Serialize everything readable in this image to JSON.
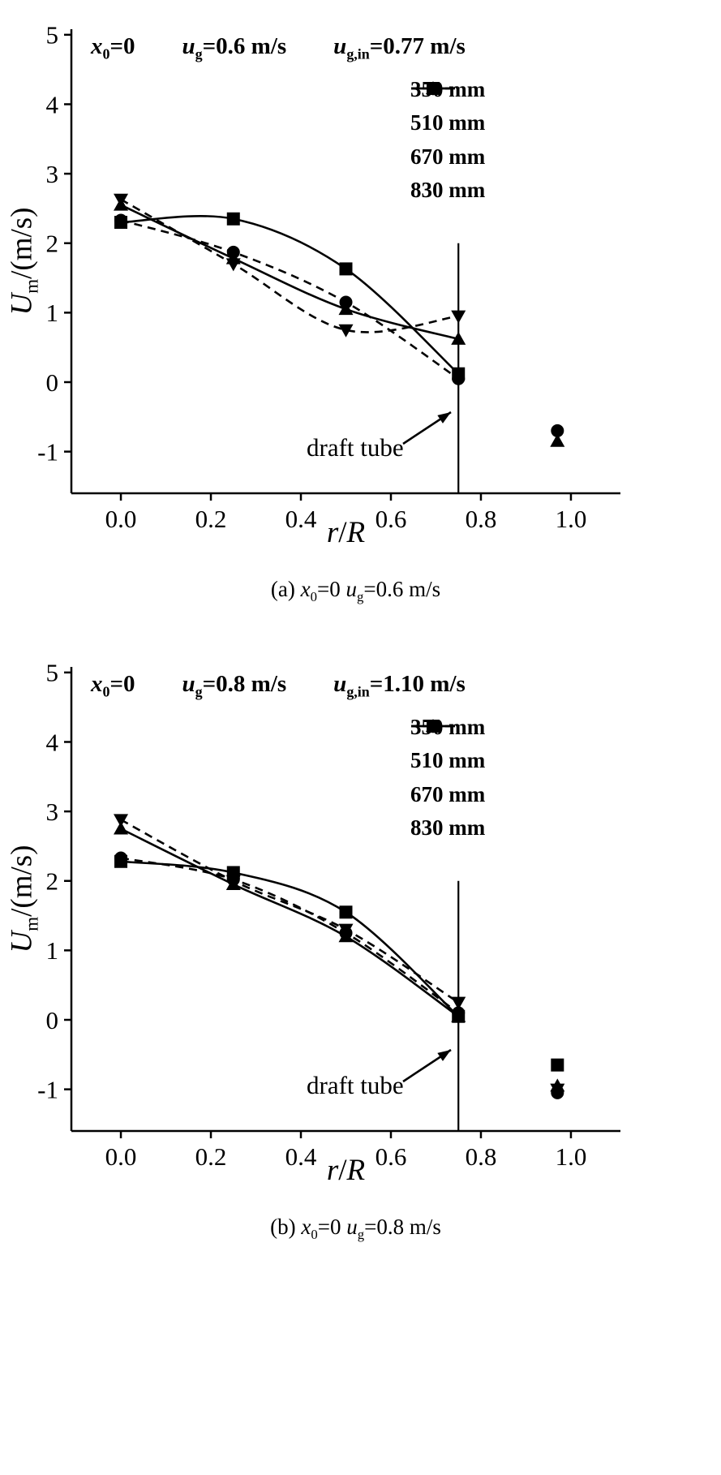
{
  "page": {
    "background": "#ffffff",
    "ink": "#000000"
  },
  "chart_data": [
    {
      "id": "a",
      "type": "scatter",
      "caption": [
        {
          "t": "(a) "
        },
        {
          "t": "x",
          "s": "i"
        },
        {
          "t": "0",
          "s": "sub"
        },
        {
          "t": "=0 "
        },
        {
          "t": "u",
          "s": "i"
        },
        {
          "t": "g",
          "s": "sub"
        },
        {
          "t": "=0.6 m/s"
        }
      ],
      "title_annotation": [
        [
          {
            "t": "x",
            "s": "i"
          },
          {
            "t": "0",
            "s": "sub"
          },
          {
            "t": "=0"
          }
        ],
        [
          {
            "t": "u",
            "s": "i"
          },
          {
            "t": "g",
            "s": "sub"
          },
          {
            "t": "=0.6 m/s"
          }
        ],
        [
          {
            "t": "u",
            "s": "i"
          },
          {
            "t": "g,in",
            "s": "sub"
          },
          {
            "t": "=0.77 m/s"
          }
        ]
      ],
      "xlabel": [
        {
          "t": "r",
          "s": "i"
        },
        {
          "t": "/"
        },
        {
          "t": "R",
          "s": "i"
        }
      ],
      "ylabel": [
        {
          "t": "U",
          "s": "i"
        },
        {
          "t": "m",
          "s": "sub"
        },
        {
          "t": "/(m/s)"
        }
      ],
      "xlim": [
        -0.11,
        1.11
      ],
      "ylim": [
        -1.6,
        5.08
      ],
      "xticks": [
        {
          "v": 0,
          "label": "0.0"
        },
        {
          "v": 0.2,
          "label": "0.2"
        },
        {
          "v": 0.4,
          "label": "0.4"
        },
        {
          "v": 0.6,
          "label": "0.6"
        },
        {
          "v": 0.8,
          "label": "0.8"
        },
        {
          "v": 1,
          "label": "1.0"
        }
      ],
      "yticks": [
        {
          "v": 5,
          "label": "5"
        },
        {
          "v": 4,
          "label": "4"
        },
        {
          "v": 3,
          "label": "3"
        },
        {
          "v": 2,
          "label": "2"
        },
        {
          "v": 1,
          "label": "1"
        },
        {
          "v": 0,
          "label": "0"
        },
        {
          "v": -1,
          "label": "-1"
        }
      ],
      "legend_position": "top-right",
      "series": [
        {
          "name": "350 mm",
          "marker": "square",
          "line": "solid",
          "points": [
            [
              0,
              2.3
            ],
            [
              0.25,
              2.35
            ],
            [
              0.5,
              1.63
            ],
            [
              0.75,
              0.12
            ]
          ],
          "outliers": []
        },
        {
          "name": "510 mm",
          "marker": "circle",
          "line": "dashed",
          "points": [
            [
              0,
              2.33
            ],
            [
              0.25,
              1.87
            ],
            [
              0.5,
              1.15
            ],
            [
              0.75,
              0.05
            ]
          ],
          "outliers": [
            [
              0.97,
              -0.7
            ]
          ]
        },
        {
          "name": "670 mm",
          "marker": "triangle-up",
          "line": "solid",
          "points": [
            [
              0,
              2.55
            ],
            [
              0.25,
              1.78
            ],
            [
              0.5,
              1.05
            ],
            [
              0.75,
              0.62
            ]
          ],
          "outliers": [
            [
              0.97,
              -0.85
            ]
          ]
        },
        {
          "name": "830 mm",
          "marker": "triangle-down",
          "line": "dashed",
          "points": [
            [
              0,
              2.63
            ],
            [
              0.25,
              1.7
            ],
            [
              0.5,
              0.75
            ],
            [
              0.75,
              0.95
            ]
          ],
          "outliers": []
        }
      ],
      "draft_tube": {
        "x": 0.75,
        "y_top": 2.0,
        "label": "draft tube"
      }
    },
    {
      "id": "b",
      "type": "scatter",
      "caption": [
        {
          "t": "(b) "
        },
        {
          "t": "x",
          "s": "i"
        },
        {
          "t": "0",
          "s": "sub"
        },
        {
          "t": "=0 "
        },
        {
          "t": "u",
          "s": "i"
        },
        {
          "t": "g",
          "s": "sub"
        },
        {
          "t": "=0.8 m/s"
        }
      ],
      "title_annotation": [
        [
          {
            "t": "x",
            "s": "i"
          },
          {
            "t": "0",
            "s": "sub"
          },
          {
            "t": "=0"
          }
        ],
        [
          {
            "t": "u",
            "s": "i"
          },
          {
            "t": "g",
            "s": "sub"
          },
          {
            "t": "=0.8 m/s"
          }
        ],
        [
          {
            "t": "u",
            "s": "i"
          },
          {
            "t": "g,in",
            "s": "sub"
          },
          {
            "t": "=1.10 m/s"
          }
        ]
      ],
      "xlabel": [
        {
          "t": "r",
          "s": "i"
        },
        {
          "t": "/"
        },
        {
          "t": "R",
          "s": "i"
        }
      ],
      "ylabel": [
        {
          "t": "U",
          "s": "i"
        },
        {
          "t": "m",
          "s": "sub"
        },
        {
          "t": "/(m/s)"
        }
      ],
      "xlim": [
        -0.11,
        1.11
      ],
      "ylim": [
        -1.6,
        5.08
      ],
      "xticks": [
        {
          "v": 0,
          "label": "0.0"
        },
        {
          "v": 0.2,
          "label": "0.2"
        },
        {
          "v": 0.4,
          "label": "0.4"
        },
        {
          "v": 0.6,
          "label": "0.6"
        },
        {
          "v": 0.8,
          "label": "0.8"
        },
        {
          "v": 1,
          "label": "1.0"
        }
      ],
      "yticks": [
        {
          "v": 5,
          "label": "5"
        },
        {
          "v": 4,
          "label": "4"
        },
        {
          "v": 3,
          "label": "3"
        },
        {
          "v": 2,
          "label": "2"
        },
        {
          "v": 1,
          "label": "1"
        },
        {
          "v": 0,
          "label": "0"
        },
        {
          "v": -1,
          "label": "-1"
        }
      ],
      "legend_position": "top-right",
      "series": [
        {
          "name": "350 mm",
          "marker": "square",
          "line": "solid",
          "points": [
            [
              0,
              2.28
            ],
            [
              0.25,
              2.12
            ],
            [
              0.5,
              1.55
            ],
            [
              0.75,
              0.05
            ]
          ],
          "outliers": [
            [
              0.97,
              -0.65
            ]
          ]
        },
        {
          "name": "510 mm",
          "marker": "circle",
          "line": "dashed",
          "points": [
            [
              0,
              2.33
            ],
            [
              0.25,
              2.02
            ],
            [
              0.5,
              1.25
            ],
            [
              0.75,
              0.1
            ]
          ],
          "outliers": [
            [
              0.97,
              -1.05
            ]
          ]
        },
        {
          "name": "670 mm",
          "marker": "triangle-up",
          "line": "solid",
          "points": [
            [
              0,
              2.75
            ],
            [
              0.25,
              1.95
            ],
            [
              0.5,
              1.2
            ],
            [
              0.75,
              0.05
            ]
          ],
          "outliers": [
            [
              0.97,
              -0.95
            ]
          ]
        },
        {
          "name": "830 mm",
          "marker": "triangle-down",
          "line": "dashed",
          "points": [
            [
              0,
              2.88
            ],
            [
              0.25,
              2.0
            ],
            [
              0.5,
              1.3
            ],
            [
              0.75,
              0.25
            ]
          ],
          "outliers": [
            [
              0.97,
              -1.0
            ]
          ]
        }
      ],
      "draft_tube": {
        "x": 0.75,
        "y_top": 2.0,
        "label": "draft tube"
      }
    }
  ]
}
